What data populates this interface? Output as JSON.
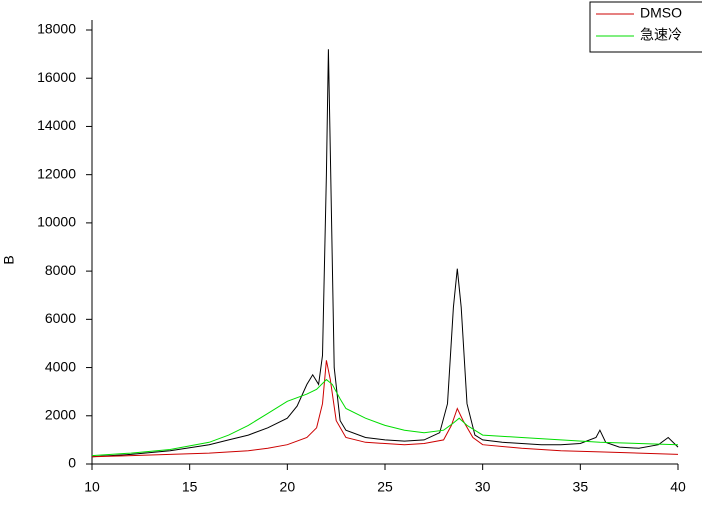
{
  "chart_data": {
    "type": "line",
    "ylabel": "B",
    "xlim": [
      10,
      40
    ],
    "xticks": [
      10,
      15,
      20,
      25,
      30,
      35,
      40
    ],
    "ylim": [
      0,
      18000
    ],
    "yticks": [
      0,
      2000,
      4000,
      6000,
      8000,
      10000,
      12000,
      14000,
      16000,
      18000
    ],
    "legend": "top-right",
    "series": [
      {
        "color": "#000000",
        "x": [
          10,
          12,
          14,
          16,
          17,
          18,
          19,
          20,
          20.5,
          21,
          21.3,
          21.6,
          21.8,
          22.0,
          22.1,
          22.2,
          22.4,
          22.7,
          23,
          24,
          25,
          26,
          27,
          27.8,
          28.2,
          28.5,
          28.7,
          28.9,
          29.2,
          29.6,
          30,
          31,
          32,
          33,
          34,
          35,
          35.8,
          36,
          36.3,
          37,
          38,
          39,
          39.5,
          40
        ],
        "values": [
          300,
          400,
          550,
          800,
          1000,
          1200,
          1500,
          1900,
          2400,
          3300,
          3700,
          3300,
          4500,
          12000,
          17200,
          13000,
          4000,
          1800,
          1400,
          1100,
          1000,
          950,
          1000,
          1300,
          2500,
          6500,
          8100,
          6500,
          2500,
          1200,
          1000,
          900,
          850,
          800,
          800,
          850,
          1100,
          1400,
          900,
          700,
          650,
          800,
          1100,
          700
        ]
      },
      {
        "name": "DMSO",
        "color": "#cc0000",
        "x": [
          10,
          12,
          14,
          16,
          18,
          19,
          20,
          21,
          21.5,
          21.8,
          22.0,
          22.2,
          22.5,
          23,
          24,
          25,
          26,
          27,
          28,
          28.4,
          28.7,
          29,
          29.5,
          30,
          32,
          34,
          36,
          38,
          40
        ],
        "values": [
          300,
          350,
          400,
          450,
          550,
          650,
          800,
          1100,
          1500,
          2500,
          4300,
          3500,
          1800,
          1100,
          900,
          850,
          800,
          850,
          1000,
          1600,
          2300,
          1800,
          1100,
          800,
          650,
          550,
          500,
          450,
          400
        ]
      },
      {
        "name": "急速冷",
        "color": "#00dd00",
        "x": [
          10,
          12,
          14,
          16,
          17,
          18,
          19,
          20,
          21,
          21.5,
          22,
          22.3,
          22.7,
          23,
          24,
          25,
          26,
          27,
          28,
          28.5,
          28.8,
          29.2,
          30,
          32,
          34,
          36,
          38,
          40
        ],
        "values": [
          350,
          450,
          600,
          900,
          1200,
          1600,
          2100,
          2600,
          2900,
          3100,
          3500,
          3300,
          2700,
          2300,
          1900,
          1600,
          1400,
          1300,
          1400,
          1700,
          1900,
          1600,
          1200,
          1100,
          1000,
          900,
          850,
          800
        ]
      }
    ]
  }
}
